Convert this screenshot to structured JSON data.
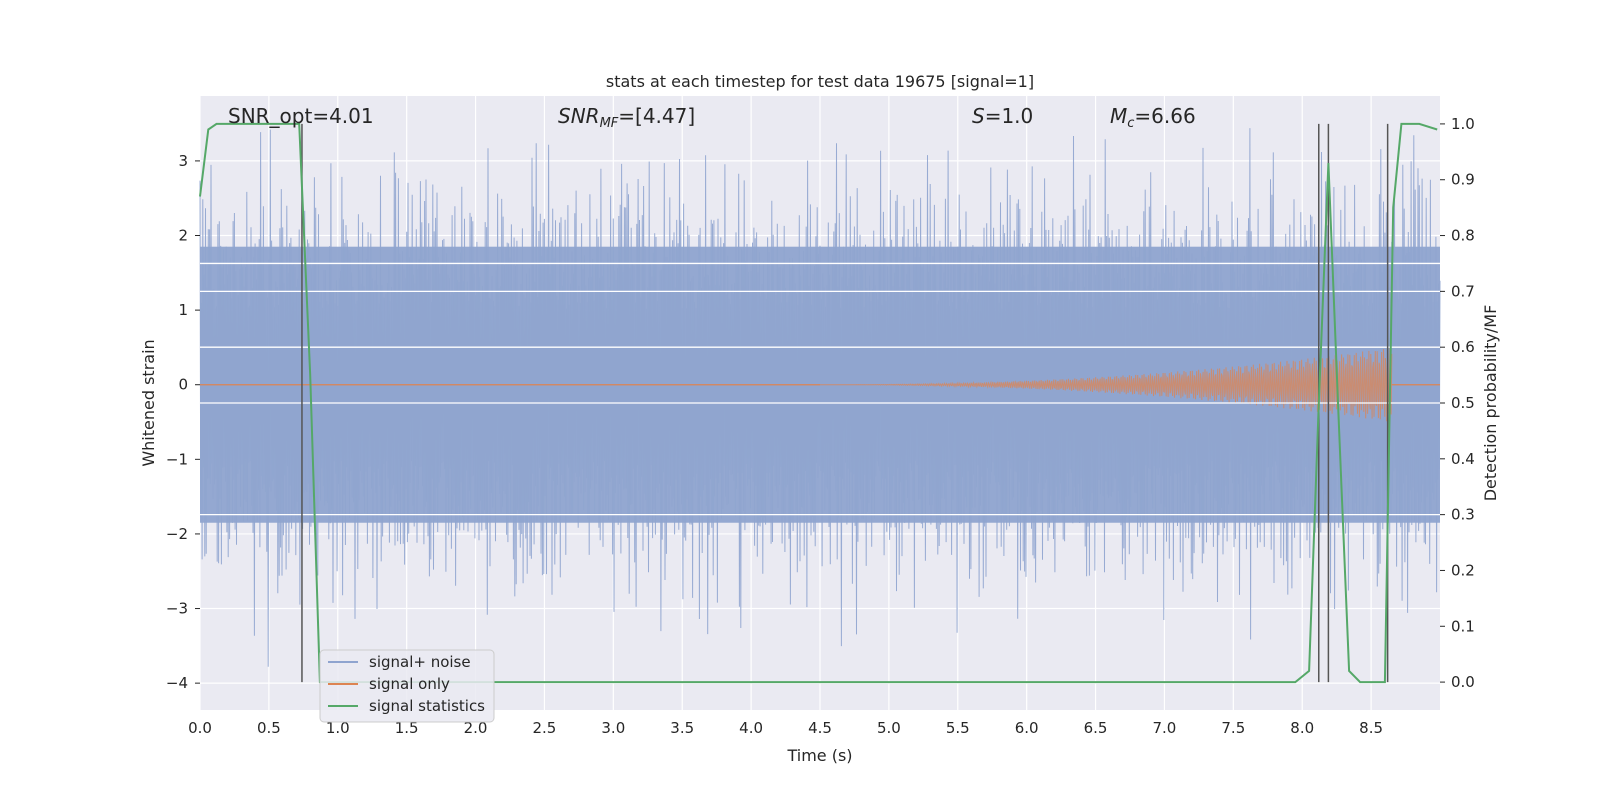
{
  "chart_data": {
    "type": "line",
    "title": "stats at each timestep for test data 19675 [signal=1]",
    "xlabel": "Time (s)",
    "ylabel_left": "Whitened strain",
    "ylabel_right": "Detection probability/MF",
    "xlim": [
      0,
      9.0
    ],
    "ylim_left": [
      -4.36,
      3.87
    ],
    "ylim_right": [
      -0.05,
      1.05
    ],
    "x_ticks": [
      "0.0",
      "0.5",
      "1.0",
      "1.5",
      "2.0",
      "2.5",
      "3.0",
      "3.5",
      "4.0",
      "4.5",
      "5.0",
      "5.5",
      "6.0",
      "6.5",
      "7.0",
      "7.5",
      "8.0",
      "8.5"
    ],
    "y_left_ticks": [
      "3",
      "2",
      "1",
      "0",
      "−1",
      "−2",
      "−3",
      "−4"
    ],
    "y_right_ticks": [
      "1.0",
      "0.9",
      "0.8",
      "0.7",
      "0.6",
      "0.5",
      "0.4",
      "0.3",
      "0.2",
      "0.1",
      "0.0"
    ],
    "annotations": {
      "snr_opt": "SNR_opt=4.01",
      "snr_mf_value": "=[4.47]",
      "s_value": "=1.0",
      "mc_value": "=6.66"
    },
    "grid": true,
    "legend_position": "lower-left",
    "series": [
      {
        "name": "signal+ noise",
        "color": "#8fa4cf",
        "description_range": "noise envelope roughly between -2.9 and 3.5 across full span, spikes to 3.5 and -4.0",
        "envelope_low": -1.85,
        "envelope_high": 1.85
      },
      {
        "name": "signal only",
        "color": "#dd8452",
        "chirp_start_time": 4.5,
        "chirp_end_time": 8.65,
        "chirp_peak_amplitude": 0.5
      },
      {
        "name": "signal statistics",
        "color": "#55a868",
        "x": [
          0.0,
          0.06,
          0.12,
          0.5,
          0.72,
          0.8,
          0.87,
          1.0,
          2.0,
          3.0,
          4.0,
          5.0,
          6.0,
          7.0,
          7.5,
          7.95,
          8.05,
          8.12,
          8.19,
          8.26,
          8.34,
          8.42,
          8.55,
          8.6,
          8.66,
          8.72,
          8.85,
          8.98
        ],
        "y": [
          0.87,
          0.99,
          1.0,
          1.0,
          1.0,
          0.55,
          0.0,
          0.0,
          0.0,
          0.0,
          0.0,
          0.0,
          0.0,
          0.0,
          0.0,
          0.0,
          0.02,
          0.5,
          0.93,
          0.5,
          0.02,
          0.0,
          0.0,
          0.0,
          0.85,
          1.0,
          1.0,
          0.99
        ]
      }
    ],
    "vertical_markers": [
      {
        "x": 0.74,
        "y_top": 1.0
      },
      {
        "x": 8.12,
        "y_top": 1.0
      },
      {
        "x": 8.19,
        "y_top": 1.0
      },
      {
        "x": 8.62,
        "y_top": 1.0
      }
    ],
    "white_hlines_right": [
      0.3,
      0.5,
      0.6,
      0.7,
      0.75
    ],
    "colors": {
      "plot_bg": "#eaeaf2",
      "grid": "#ffffff",
      "marker": "#555555"
    }
  }
}
